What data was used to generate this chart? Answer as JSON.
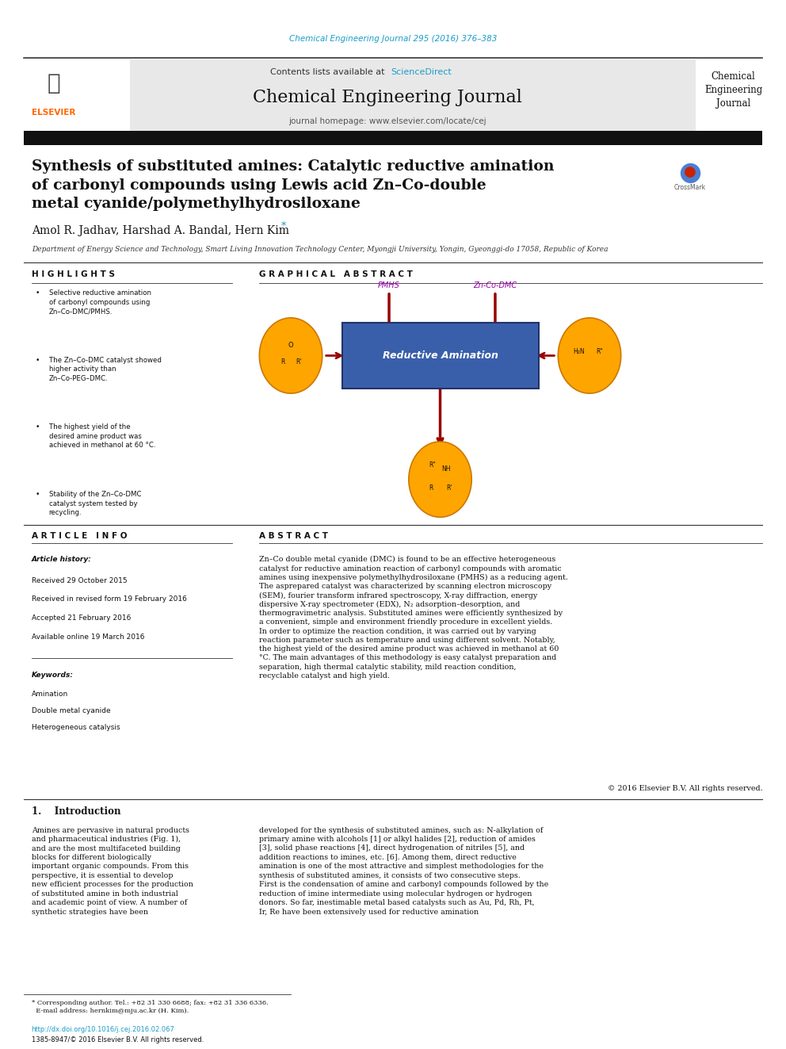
{
  "page_width": 9.92,
  "page_height": 13.23,
  "bg_color": "#ffffff",
  "citation_text": "Chemical Engineering Journal 295 (2016) 376–383",
  "citation_color": "#1a9dc8",
  "header_bg": "#e8e8e8",
  "contents_text": "Contents lists available at ",
  "sciencedirect_text": "ScienceDirect",
  "sciencedirect_color": "#1a9dc8",
  "journal_title": "Chemical Engineering Journal",
  "journal_homepage": "journal homepage: www.elsevier.com/locate/cej",
  "black_bar_color": "#111111",
  "article_title": "Synthesis of substituted amines: Catalytic reductive amination\nof carbonyl compounds using Lewis acid Zn–Co-double\nmetal cyanide/polymethylhydrosiloxane",
  "authors": "Amol R. Jadhav, Harshad A. Bandal, Hern Kim",
  "affiliation": "Department of Energy Science and Technology, Smart Living Innovation Technology Center, Myongji University, Yongin, Gyeonggi-do 17058, Republic of Korea",
  "highlights_title": "H I G H L I G H T S",
  "highlights": [
    "Selective reductive amination of carbonyl compounds using Zn–Co-DMC/PMHS.",
    "The Zn–Co-DMC catalyst showed higher activity than Zn–Co-PEG–DMC.",
    "The highest yield of the desired amine product was achieved in methanol at 60 °C.",
    "Stability of the Zn–Co-DMC catalyst system tested by recycling."
  ],
  "graphical_abstract_title": "G R A P H I C A L   A B S T R A C T",
  "pmhs_label": "PMHS",
  "pmhs_color": "#9900aa",
  "zn_co_dmc_label": "Zn-Co-DMC",
  "zn_co_dmc_color": "#9900aa",
  "arrow_color": "#990000",
  "box_color": "#3a5faa",
  "box_text": "Reductive Amination",
  "box_text_color": "#ffffff",
  "ellipse_color": "#ffa500",
  "article_info_title": "A R T I C L E   I N F O",
  "article_history_label": "Article history:",
  "received_text": "Received 29 October 2015",
  "received_revised_text": "Received in revised form 19 February 2016",
  "accepted_text": "Accepted 21 February 2016",
  "available_text": "Available online 19 March 2016",
  "keywords_label": "Keywords:",
  "keywords": [
    "Amination",
    "Double metal cyanide",
    "Heterogeneous catalysis"
  ],
  "abstract_title": "A B S T R A C T",
  "abstract_text": "Zn–Co double metal cyanide (DMC) is found to be an effective heterogeneous catalyst for reductive amination reaction of carbonyl compounds with aromatic amines using inexpensive polymethylhydrosiloxane (PMHS) as a reducing agent. The asprepared catalyst was characterized by scanning electron microscopy (SEM), fourier transform infrared spectroscopy, X-ray diffraction, energy dispersive X-ray spectrometer (EDX), N₂ adsorption–desorption, and thermogravimetric analysis. Substituted amines were efficiently synthesized by a convenient, simple and environment friendly procedure in excellent yields. In order to optimize the reaction condition, it was carried out by varying reaction parameter such as temperature and using different solvent. Notably, the highest yield of the desired amine product was achieved in methanol at 60 °C. The main advantages of this methodology is easy catalyst preparation and separation, high thermal catalytic stability, mild reaction condition, recyclable catalyst and high yield.",
  "copyright_text": "© 2016 Elsevier B.V. All rights reserved.",
  "intro_title": "1.    Introduction",
  "intro_text": "Amines are pervasive in natural products and pharmaceutical industries (Fig. 1), and are the most multifaceted building blocks for different biologically important organic compounds. From this perspective, it is essential to develop new efficient processes for the production of substituted amine in both industrial and academic point of view. A number of synthetic strategies have been",
  "intro_text2": "developed for the synthesis of substituted amines, such as: N-alkylation of primary amine with alcohols [1] or alkyl halides [2], reduction of amides [3], solid phase reactions [4], direct hydrogenation of nitriles [5], and addition reactions to imines, etc. [6]. Among them, direct reductive amination is one of the most attractive and simplest methodologies for the synthesis of substituted amines, it consists of two consecutive steps. First is the condensation of amine and carbonyl compounds followed by the reduction of imine intermediate using molecular hydrogen or hydrogen donors. So far, inestimable metal based catalysts such as Au, Pd, Rh, Pt, Ir, Re have been extensively used for reductive amination",
  "footnote_text": "* Corresponding author. Tel.: +82 31 330 6688; fax: +82 31 336 6336.\n  E-mail address: hernkim@mju.ac.kr (H. Kim).",
  "doi_text": "http://dx.doi.org/10.1016/j.cej.2016.02.067",
  "issn_text": "1385-8947/© 2016 Elsevier B.V. All rights reserved."
}
